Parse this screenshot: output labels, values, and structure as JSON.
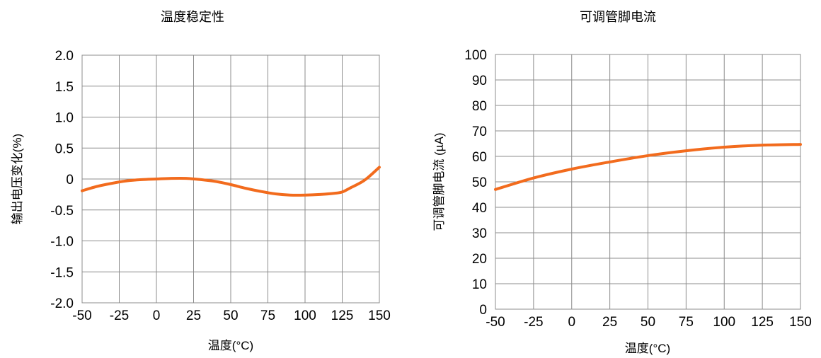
{
  "chart_data": [
    {
      "type": "line",
      "title": "温度稳定性",
      "xlabel": "温度(°C)",
      "ylabel": "输出电压变化(%)",
      "x_ticks": [
        "-50",
        "-25",
        "0",
        "25",
        "50",
        "75",
        "100",
        "125",
        "150"
      ],
      "y_ticks": [
        "2.0",
        "1.5",
        "1.0",
        "0.5",
        "0",
        "-0.5",
        "-1.0",
        "-1.5",
        "-2.0"
      ],
      "xlim": [
        -50,
        150
      ],
      "ylim": [
        -2.0,
        2.0
      ],
      "grid": true,
      "color": "#f26b1d",
      "series": [
        {
          "x": [
            -50,
            -40,
            -30,
            -20,
            -10,
            0,
            10,
            20,
            30,
            40,
            50,
            60,
            70,
            80,
            90,
            100,
            110,
            120,
            125,
            130,
            140,
            150
          ],
          "y": [
            -0.19,
            -0.12,
            -0.07,
            -0.03,
            -0.01,
            0.0,
            0.01,
            0.01,
            -0.01,
            -0.04,
            -0.09,
            -0.15,
            -0.2,
            -0.24,
            -0.26,
            -0.26,
            -0.25,
            -0.23,
            -0.21,
            -0.15,
            -0.02,
            0.19
          ]
        }
      ]
    },
    {
      "type": "line",
      "title": "可调管脚电流",
      "xlabel": "温度(°C)",
      "ylabel": "可调管脚电流 (µA)",
      "x_ticks": [
        "-50",
        "-25",
        "0",
        "25",
        "50",
        "75",
        "100",
        "125",
        "150"
      ],
      "y_ticks": [
        "100",
        "90",
        "80",
        "70",
        "60",
        "50",
        "40",
        "30",
        "20",
        "10",
        "0"
      ],
      "xlim": [
        -50,
        150
      ],
      "ylim": [
        0,
        100
      ],
      "grid": true,
      "color": "#f26b1d",
      "series": [
        {
          "x": [
            -50,
            -25,
            0,
            25,
            50,
            75,
            100,
            125,
            150
          ],
          "y": [
            47,
            51.5,
            55,
            57.8,
            60.3,
            62.2,
            63.6,
            64.4,
            64.7
          ]
        }
      ]
    }
  ]
}
